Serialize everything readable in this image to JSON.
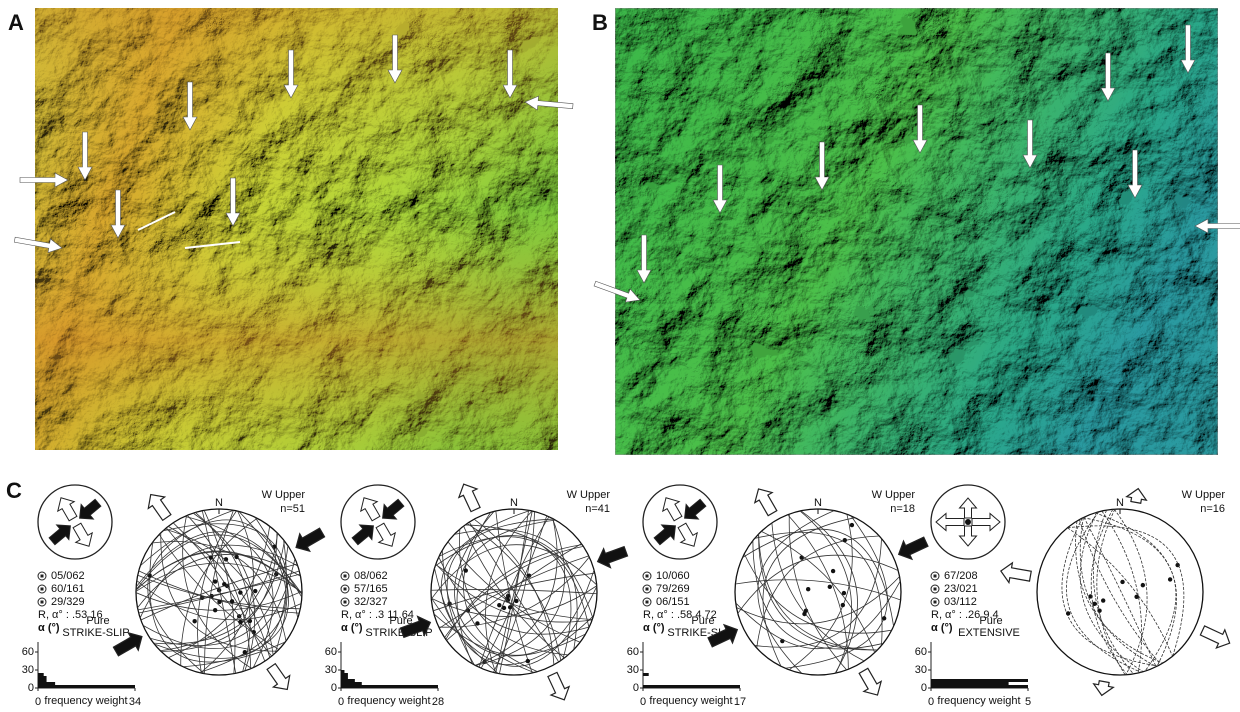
{
  "panels": {
    "A": {
      "label": "A"
    },
    "B": {
      "label": "B"
    },
    "C": {
      "label": "C",
      "stereonets": [
        {
          "title": "W Upper",
          "n": "n=51",
          "north": "N",
          "axes": [
            "05/062",
            "60/161",
            "29/329"
          ],
          "ratio": "R, α° : .53 16",
          "alpha_label": "α (°)",
          "regime": [
            "Pure",
            "STRIKE-SLIP"
          ],
          "histogram": {
            "bins": [
              0,
              5,
              10,
              15,
              20,
              25
            ],
            "counts": [
              34,
              6,
              3,
              3,
              2
            ],
            "xlim": [
              0,
              34
            ],
            "xticks": [
              0,
              34
            ],
            "ylim": [
              0,
              70
            ],
            "yticks": [
              0,
              30,
              60
            ],
            "xlabel": "frequency weight"
          }
        },
        {
          "title": "W Upper",
          "n": "n=41",
          "north": "N",
          "axes": [
            "08/062",
            "57/165",
            "32/327"
          ],
          "ratio": "R, α° : .3 11.64",
          "alpha_label": "α (°)",
          "regime": [
            "Pure",
            "STRIKE-SLIP"
          ],
          "histogram": {
            "bins": [
              0,
              5,
              10,
              15,
              20,
              25,
              30
            ],
            "counts": [
              28,
              6,
              4,
              2,
              2,
              1
            ],
            "xlim": [
              0,
              28
            ],
            "xticks": [
              0,
              28
            ],
            "ylim": [
              0,
              70
            ],
            "yticks": [
              0,
              30,
              60
            ],
            "xlabel": "frequency weight"
          }
        },
        {
          "title": "W Upper",
          "n": "n=18",
          "north": "N",
          "axes": [
            "10/060",
            "79/269",
            "06/151"
          ],
          "ratio": "R, α° : .58 4.72",
          "alpha_label": "α (°)",
          "regime": [
            "Pure",
            "STRIKE-SLIP"
          ],
          "histogram": {
            "bins": [
              0,
              5,
              10,
              15,
              20,
              25
            ],
            "counts": [
              17,
              0,
              0,
              0,
              1
            ],
            "xlim": [
              0,
              17
            ],
            "xticks": [
              0,
              17
            ],
            "ylim": [
              0,
              70
            ],
            "yticks": [
              0,
              30,
              60
            ],
            "xlabel": "frequency weight"
          }
        },
        {
          "title": "W Upper",
          "n": "n=16",
          "north": "N",
          "axes": [
            "67/208",
            "23/021",
            "03/112"
          ],
          "ratio": "R, α° : .26 9.4",
          "alpha_label": "α (°)",
          "regime": [
            "Pure",
            "EXTENSIVE"
          ],
          "histogram": {
            "bins": [
              0,
              5,
              10,
              15
            ],
            "counts": [
              5,
              4,
              5
            ],
            "xlim": [
              0,
              5
            ],
            "xticks": [
              0,
              5
            ],
            "ylim": [
              0,
              70
            ],
            "yticks": [
              0,
              30,
              60
            ],
            "xlabel": "frequency weight"
          }
        }
      ]
    }
  }
}
